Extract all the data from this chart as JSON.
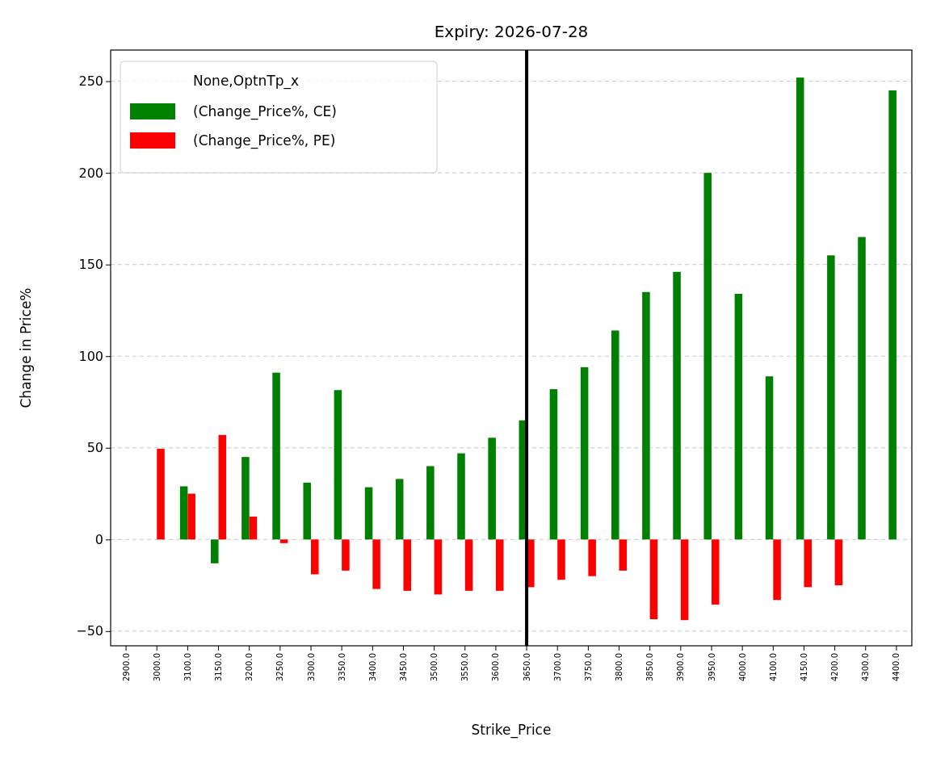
{
  "chart_data": {
    "type": "bar",
    "title": "Expiry: 2026-07-28",
    "xlabel": "Strike_Price",
    "ylabel": "Change in Price%",
    "legend_title": "None,OptnTp_x",
    "categories": [
      "2900.0",
      "3000.0",
      "3100.0",
      "3150.0",
      "3200.0",
      "3250.0",
      "3300.0",
      "3350.0",
      "3400.0",
      "3450.0",
      "3500.0",
      "3550.0",
      "3600.0",
      "3650.0",
      "3700.0",
      "3750.0",
      "3800.0",
      "3850.0",
      "3900.0",
      "3950.0",
      "4000.0",
      "4100.0",
      "4150.0",
      "4200.0",
      "4300.0",
      "4400.0"
    ],
    "series": [
      {
        "name": "(Change_Price%, CE)",
        "color": "#008000",
        "values": [
          null,
          null,
          29,
          -13,
          45,
          91,
          31,
          81.5,
          28.5,
          33,
          40,
          47,
          55.5,
          65,
          82,
          94,
          114,
          135,
          146,
          200,
          134,
          89,
          252,
          155,
          165,
          245
        ]
      },
      {
        "name": "(Change_Price%, PE)",
        "color": "#ff0000",
        "values": [
          null,
          49.5,
          25,
          57,
          12.5,
          -2,
          -19,
          -17,
          -27,
          -28,
          -30,
          -28,
          -28,
          -26,
          -22,
          -20,
          -17,
          -43.5,
          -44,
          -35.5,
          null,
          -33,
          -26,
          -25,
          null,
          null
        ]
      }
    ],
    "ylim": [
      -58,
      267
    ],
    "yticks": [
      {
        "value": -50,
        "label": "−50"
      },
      0,
      50,
      100,
      150,
      200,
      250
    ],
    "grid": "y",
    "legend": "top left",
    "ref_lines": [
      {
        "axis": "x",
        "value": "3650.0",
        "color": "#000000"
      }
    ]
  }
}
